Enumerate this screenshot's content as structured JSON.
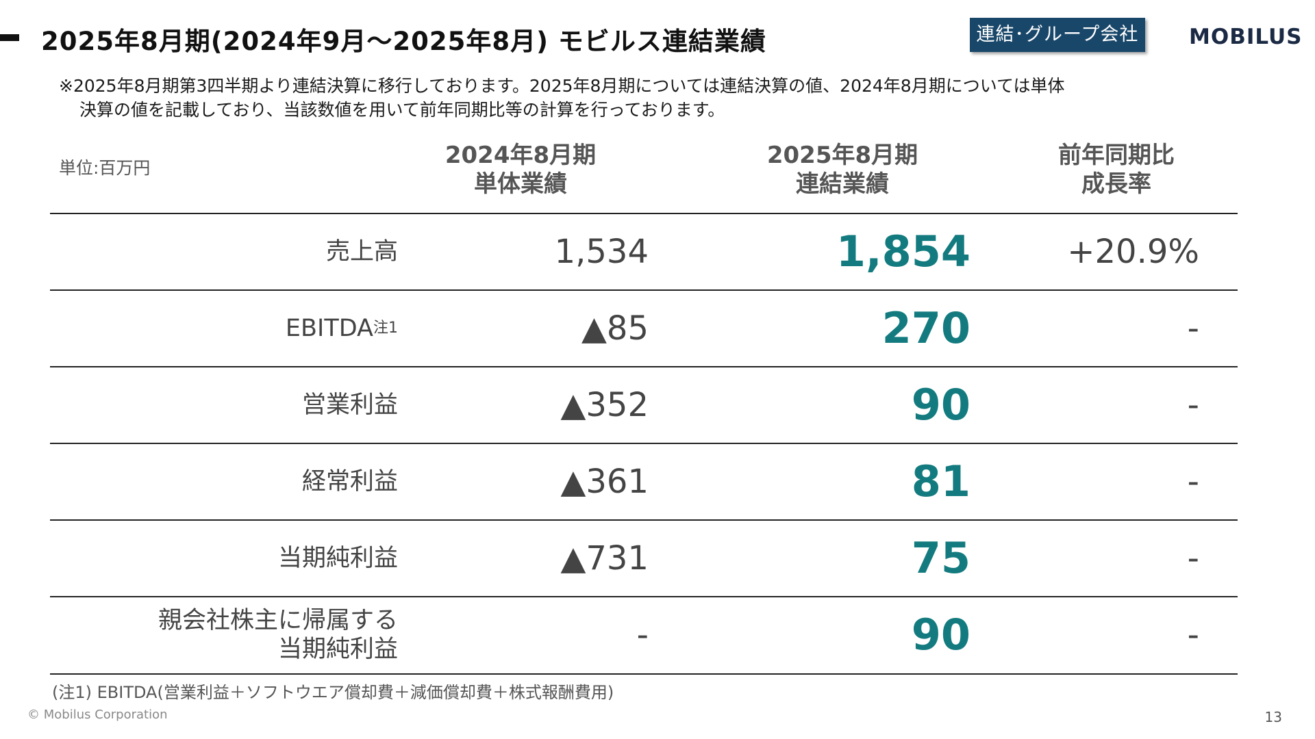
{
  "header": {
    "title": "2025年8月期(2024年9月～2025年8月) モビルス連結業績",
    "badge": "連結･グループ会社",
    "logo": "MOBILUS"
  },
  "note": {
    "line1": "※2025年8月期第3四半期より連結決算に移行しております。2025年8月期については連結決算の値、2024年8月期については単体",
    "line2": "決算の値を記載しており、当該数値を用いて前年同期比等の計算を行っております。"
  },
  "table": {
    "unit": "単位:百万円",
    "columns": [
      {
        "line1": "2024年8月期",
        "line2": "単体業績"
      },
      {
        "line1": "2025年8月期",
        "line2": "連結業績"
      },
      {
        "line1": "前年同期比",
        "line2": "成長率"
      }
    ],
    "rows": [
      {
        "label": "売上高",
        "label2": "",
        "sup": "",
        "v2024": "1,534",
        "v2025": "1,854",
        "growth": "+20.9%"
      },
      {
        "label": "EBITDA",
        "label2": "",
        "sup": "注1",
        "v2024": "▲85",
        "v2025": "270",
        "growth": "-"
      },
      {
        "label": "営業利益",
        "label2": "",
        "sup": "",
        "v2024": "▲352",
        "v2025": "90",
        "growth": "-"
      },
      {
        "label": "経常利益",
        "label2": "",
        "sup": "",
        "v2024": "▲361",
        "v2025": "81",
        "growth": "-"
      },
      {
        "label": "当期純利益",
        "label2": "",
        "sup": "",
        "v2024": "▲731",
        "v2025": "75",
        "growth": "-"
      },
      {
        "label": "親会社株主に帰属する",
        "label2": "当期純利益",
        "sup": "",
        "v2024": "-",
        "v2025": "90",
        "growth": "-"
      }
    ]
  },
  "footnote": "(注1) EBITDA(営業利益＋ソフトウエア償却費＋減価償却費＋株式報酬費用)",
  "footer": {
    "copyright": "© Mobilus Corporation",
    "page": "13"
  },
  "colors": {
    "accent": "#137b7f",
    "badge": "#19476a"
  }
}
